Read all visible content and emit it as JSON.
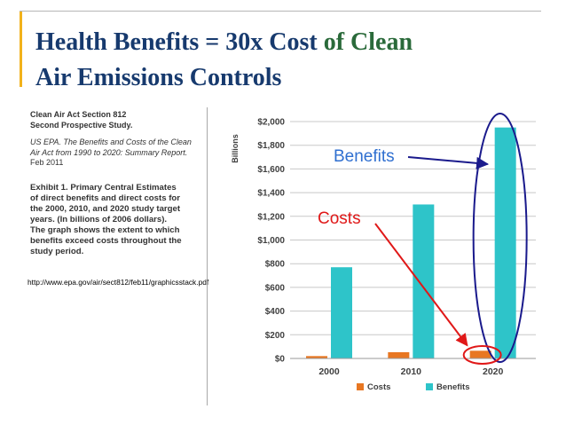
{
  "slide": {
    "title_part1": "Health Benefits = 30x Cost",
    "title_part2": " of Clean",
    "title_line2": "Air Emissions Controls"
  },
  "sidebar": {
    "heading_line1": "Clean Air Act Section 812",
    "heading_line2": "Second Prospective Study.",
    "reference_line1": "US EPA.  The Benefits and Costs of the Clean",
    "reference_line2": "Air Act from 1990 to 2020: Summary Report.",
    "reference_line3": "Feb 2011",
    "exhibit_lines": [
      "Exhibit 1.  Primary Central Estimates",
      "of direct benefits and direct costs for",
      "the 2000, 2010, and 2020 study target",
      "years.  (In billions of 2006 dollars).",
      "The graph shows the extent to which",
      "benefits exceed costs throughout the",
      "study period."
    ],
    "url": "http://www.epa.gov/air/sect812/feb11/graphicsstack.pdf"
  },
  "annotations": {
    "benefits_label": "Benefits",
    "costs_label": "Costs",
    "benefits_color": "#2f6fd0",
    "costs_color": "#e01818",
    "circle_color": "#1a1a8c"
  },
  "chart_data": {
    "type": "bar",
    "categories": [
      "2000",
      "2010",
      "2020"
    ],
    "series": [
      {
        "name": "Costs",
        "values": [
          20,
          53,
          65
        ],
        "color": "#e87722"
      },
      {
        "name": "Benefits",
        "values": [
          770,
          1300,
          1950
        ],
        "color": "#2ec4c9"
      }
    ],
    "ylabel": "Billions",
    "ylim": [
      0,
      2000
    ],
    "yticks": [
      0,
      200,
      400,
      600,
      800,
      1000,
      1200,
      1400,
      1600,
      1800,
      2000
    ],
    "ytick_labels": [
      "$0",
      "$200",
      "$400",
      "$600",
      "$800",
      "$1,000",
      "$1,200",
      "$1,400",
      "$1,600",
      "$1,800",
      "$2,000"
    ],
    "grid": true,
    "legend_position": "bottom"
  }
}
